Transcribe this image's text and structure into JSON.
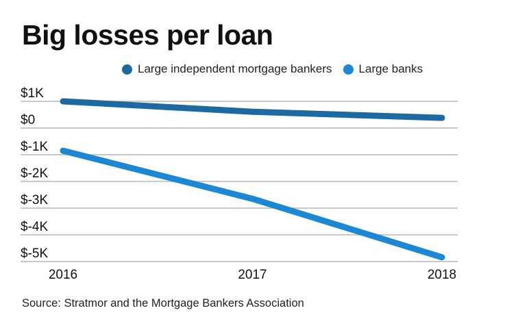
{
  "chart_data": {
    "type": "line",
    "title": "Big losses per loan",
    "categories": [
      "2016",
      "2017",
      "2018"
    ],
    "series": [
      {
        "name": "Large independent mortgage bankers",
        "values": [
          1000,
          610,
          380
        ],
        "color": "#1d6aa2"
      },
      {
        "name": "Large banks",
        "values": [
          -850,
          -2650,
          -4840
        ],
        "color": "#1c87d4"
      }
    ],
    "yticks": [
      1000,
      0,
      -1000,
      -2000,
      -3000,
      -4000,
      -5000
    ],
    "ytick_labels": [
      "$1K",
      "$0",
      "$-1K",
      "$-2K",
      "$-3K",
      "$-4K",
      "$-5K"
    ],
    "ylim": [
      -5000,
      1000
    ],
    "grid": true,
    "legend": "top",
    "xlabel": "",
    "ylabel": "",
    "source": "Source: Stratmor and the Mortgage Bankers Association"
  }
}
